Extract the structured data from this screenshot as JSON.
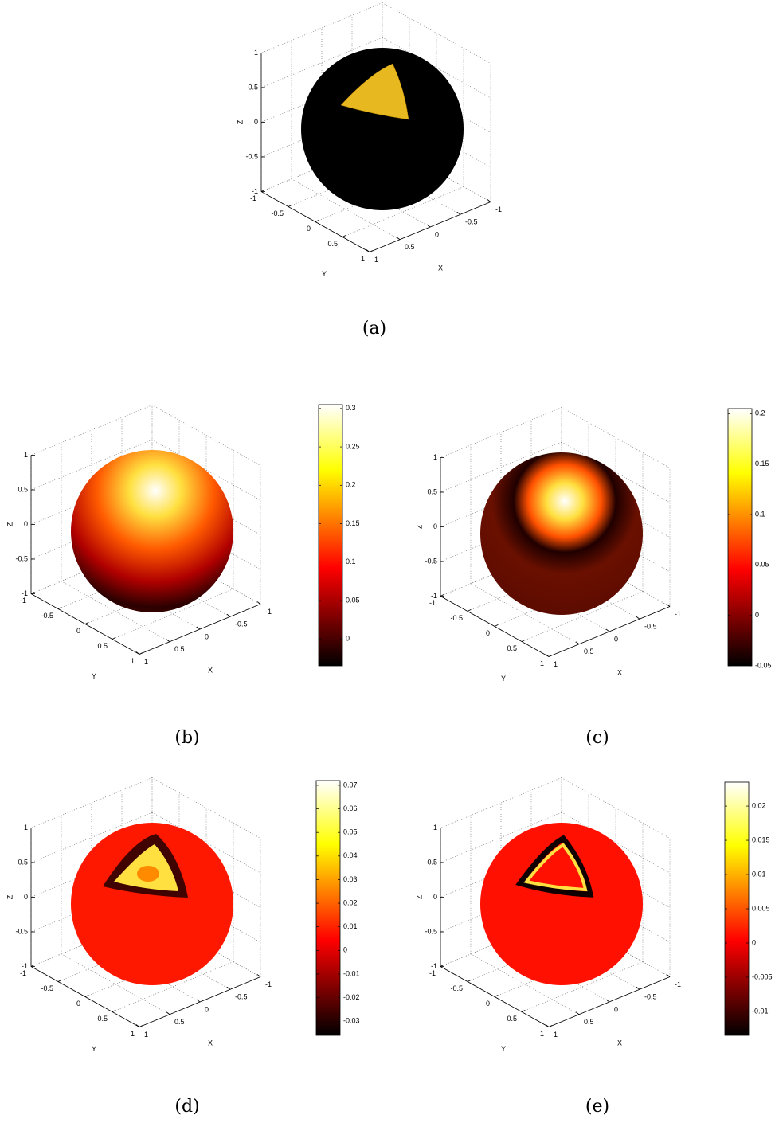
{
  "panels": [
    {
      "caption": "(a)",
      "xlabel": "X",
      "ylabel": "Y",
      "zlabel": "Z",
      "xticks": [
        -1,
        -0.5,
        0,
        0.5,
        1
      ],
      "yticks": [
        -1,
        -0.5,
        0,
        0.5,
        1
      ],
      "zticks": [
        -1,
        -0.5,
        0,
        0.5,
        1
      ]
    },
    {
      "caption": "(b)",
      "xlabel": "X",
      "ylabel": "Y",
      "zlabel": "Z",
      "xticks": [
        -1,
        -0.5,
        0,
        0.5,
        1
      ],
      "yticks": [
        -1,
        -0.5,
        0,
        0.5,
        1
      ],
      "zticks": [
        -1,
        -0.5,
        0,
        0.5,
        1
      ],
      "colorbar": {
        "lim": [
          -0.035,
          0.305
        ],
        "ticks": [
          0,
          0.05,
          0.1,
          0.15,
          0.2,
          0.25,
          0.3
        ]
      }
    },
    {
      "caption": "(c)",
      "xlabel": "X",
      "ylabel": "Y",
      "zlabel": "Z",
      "xticks": [
        -1,
        -0.5,
        0,
        0.5,
        1
      ],
      "yticks": [
        -1,
        -0.5,
        0,
        0.5,
        1
      ],
      "zticks": [
        -1,
        -0.5,
        0,
        0.5,
        1
      ],
      "colorbar": {
        "lim": [
          -0.05,
          0.205
        ],
        "ticks": [
          -0.05,
          0,
          0.05,
          0.1,
          0.15,
          0.2
        ]
      }
    },
    {
      "caption": "(d)",
      "xlabel": "X",
      "ylabel": "Y",
      "zlabel": "Z",
      "xticks": [
        -1,
        -0.5,
        0,
        0.5,
        1
      ],
      "yticks": [
        -1,
        -0.5,
        0,
        0.5,
        1
      ],
      "zticks": [
        -1,
        -0.5,
        0,
        0.5,
        1
      ],
      "colorbar": {
        "lim": [
          -0.036,
          0.072
        ],
        "ticks": [
          -0.03,
          -0.02,
          -0.01,
          0,
          0.01,
          0.02,
          0.03,
          0.04,
          0.05,
          0.06,
          0.07
        ]
      }
    },
    {
      "caption": "(e)",
      "xlabel": "X",
      "ylabel": "Y",
      "zlabel": "Z",
      "xticks": [
        -1,
        -0.5,
        0,
        0.5,
        1
      ],
      "yticks": [
        -1,
        -0.5,
        0,
        0.5,
        1
      ],
      "zticks": [
        -1,
        -0.5,
        0,
        0.5,
        1
      ],
      "colorbar": {
        "lim": [
          -0.0135,
          0.0235
        ],
        "ticks": [
          -0.01,
          -0.005,
          0,
          0.005,
          0.01,
          0.015,
          0.02
        ]
      }
    }
  ]
}
